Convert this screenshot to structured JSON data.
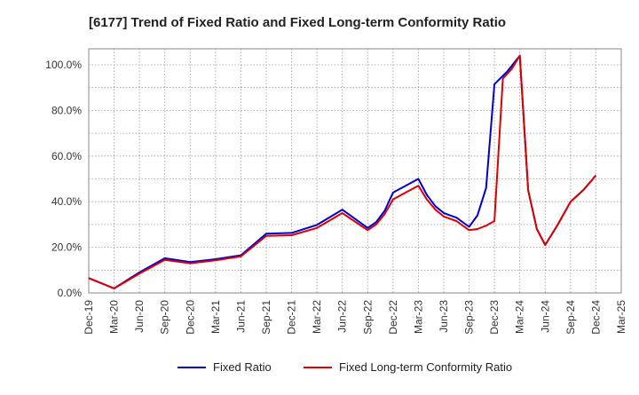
{
  "chart_data": {
    "type": "line",
    "title": "[6177]  Trend of Fixed Ratio and Fixed Long-term Conformity Ratio",
    "x": [
      "Dec-19",
      "Mar-20",
      "Jun-20",
      "Sep-20",
      "Dec-20",
      "Mar-21",
      "Jun-21",
      "Sep-21",
      "Dec-21",
      "Mar-22",
      "Jun-22",
      "Sep-22",
      "Dec-22",
      "Mar-23",
      "Jun-23",
      "Sep-23",
      "Dec-23",
      "Mar-24",
      "Jun-24",
      "Sep-24",
      "Dec-24",
      "Mar-25"
    ],
    "x_ticks": [
      "Dec-19",
      "Mar-20",
      "Jun-20",
      "Sep-20",
      "Dec-20",
      "Mar-21",
      "Jun-21",
      "Sep-21",
      "Dec-21",
      "Mar-22",
      "Jun-22",
      "Sep-22",
      "Dec-22",
      "Mar-23",
      "Jun-23",
      "Sep-23",
      "Dec-23",
      "Mar-24",
      "Jun-24",
      "Sep-24",
      "Dec-24",
      "Mar-25"
    ],
    "y_ticks": [
      "0.0%",
      "20.0%",
      "40.0%",
      "60.0%",
      "80.0%",
      "100.0%"
    ],
    "ylim": [
      0,
      107
    ],
    "series": [
      {
        "name": "Fixed Ratio",
        "color": "#0000cc",
        "points": [
          [
            0,
            6.5
          ],
          [
            1,
            2.0
          ],
          [
            2,
            9.0
          ],
          [
            3,
            15.2
          ],
          [
            4,
            13.5
          ],
          [
            5,
            14.8
          ],
          [
            6,
            16.5
          ],
          [
            7,
            26.0
          ],
          [
            8,
            26.3
          ],
          [
            9,
            29.8
          ],
          [
            10,
            36.5
          ],
          [
            11,
            28.5
          ],
          [
            11.33,
            31.0
          ],
          [
            11.67,
            36.0
          ],
          [
            12,
            44.0
          ],
          [
            12.5,
            47.0
          ],
          [
            13,
            50.0
          ],
          [
            13.33,
            43.0
          ],
          [
            13.67,
            38.0
          ],
          [
            14,
            35.0
          ],
          [
            14.5,
            33.0
          ],
          [
            15,
            29.0
          ],
          [
            15.33,
            34.0
          ],
          [
            15.67,
            46.0
          ],
          [
            16,
            91.5
          ],
          [
            16.5,
            97.0
          ],
          [
            17,
            104.0
          ],
          [
            17.33,
            45.0
          ],
          [
            17.67,
            28.0
          ],
          [
            18,
            21.0
          ],
          [
            18.5,
            30.0
          ],
          [
            19,
            40.0
          ],
          [
            19.5,
            45.0
          ],
          [
            20,
            51.5
          ]
        ]
      },
      {
        "name": "Fixed Long-term Conformity Ratio",
        "color": "#dd0000",
        "points": [
          [
            0,
            6.5
          ],
          [
            1,
            2.0
          ],
          [
            2,
            8.5
          ],
          [
            3,
            14.5
          ],
          [
            4,
            13.0
          ],
          [
            5,
            14.3
          ],
          [
            6,
            16.0
          ],
          [
            7,
            25.0
          ],
          [
            8,
            25.3
          ],
          [
            9,
            28.5
          ],
          [
            10,
            35.0
          ],
          [
            11,
            27.5
          ],
          [
            11.33,
            30.0
          ],
          [
            11.67,
            34.5
          ],
          [
            12,
            41.0
          ],
          [
            12.5,
            44.0
          ],
          [
            13,
            47.0
          ],
          [
            13.33,
            41.0
          ],
          [
            13.67,
            36.5
          ],
          [
            14,
            33.5
          ],
          [
            14.5,
            31.5
          ],
          [
            15,
            27.5
          ],
          [
            15.33,
            28.0
          ],
          [
            15.67,
            29.5
          ],
          [
            16,
            31.5
          ],
          [
            16.33,
            94.0
          ],
          [
            16.67,
            98.0
          ],
          [
            17,
            104.0
          ],
          [
            17.33,
            45.0
          ],
          [
            17.67,
            28.0
          ],
          [
            18,
            21.0
          ],
          [
            18.5,
            30.0
          ],
          [
            19,
            40.0
          ],
          [
            19.5,
            45.0
          ],
          [
            20,
            51.5
          ]
        ]
      }
    ],
    "grid": true,
    "legend": "bottom"
  }
}
